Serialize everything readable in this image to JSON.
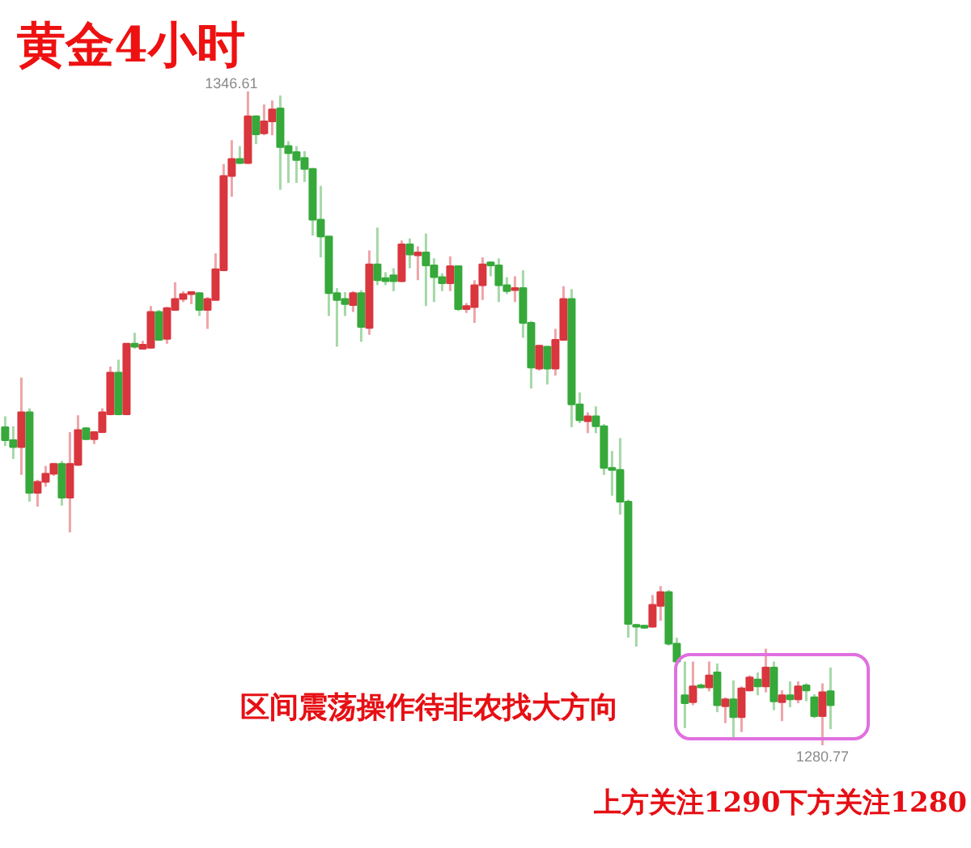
{
  "chart_data": {
    "type": "candlestick",
    "title": "黄金4小时",
    "annotations": [
      "1346.61",
      "区间震荡操作待非农找大方向",
      "1280.77",
      "上方关注1290下方关注1280"
    ],
    "categories": [
      null,
      null,
      null,
      null,
      null,
      null,
      null,
      null,
      null,
      null,
      null,
      null,
      null,
      null,
      null,
      null,
      null,
      null,
      null,
      null,
      null,
      null,
      null,
      null,
      null,
      null,
      null,
      null,
      null,
      null,
      null,
      null,
      null,
      null,
      null,
      null,
      null,
      null,
      null,
      null,
      null,
      null,
      null,
      null,
      null,
      null,
      null,
      null,
      null,
      null,
      null,
      null,
      null,
      null,
      null,
      null,
      null,
      null,
      null,
      null,
      null,
      null,
      null,
      null,
      null,
      null,
      null,
      null,
      null,
      null,
      null,
      null,
      null,
      null,
      null,
      null,
      null,
      null,
      null,
      null,
      null,
      null,
      null,
      null,
      null,
      null,
      null,
      null,
      null,
      null,
      null,
      null,
      null,
      null,
      null,
      null,
      null,
      null,
      null,
      null,
      null,
      null,
      null
    ],
    "ohlc": [
      [
        1312.8,
        1313.9,
        1310.9,
        1311.5
      ],
      [
        1311.5,
        1312.9,
        1309.6,
        1310.8
      ],
      [
        1310.8,
        1317.8,
        1308.0,
        1314.3
      ],
      [
        1314.3,
        1314.7,
        1305.3,
        1306.2
      ],
      [
        1306.2,
        1307.5,
        1304.8,
        1307.3
      ],
      [
        1307.3,
        1308.9,
        1306.8,
        1308.1
      ],
      [
        1308.1,
        1309.1,
        1307.9,
        1309.1
      ],
      [
        1309.1,
        1309.4,
        1304.9,
        1305.7
      ],
      [
        1305.7,
        1312.3,
        1302.2,
        1309.1
      ],
      [
        1309.0,
        1314.0,
        1308.9,
        1312.5
      ],
      [
        1312.7,
        1312.8,
        1311.5,
        1311.6
      ],
      [
        1311.6,
        1312.4,
        1311.1,
        1312.3
      ],
      [
        1312.3,
        1314.7,
        1312.2,
        1314.3
      ],
      [
        1314.1,
        1318.9,
        1314.0,
        1318.3
      ],
      [
        1318.3,
        1319.6,
        1314.0,
        1314.1
      ],
      [
        1314.1,
        1321.2,
        1314.0,
        1321.2
      ],
      [
        1321.2,
        1322.3,
        1320.7,
        1320.9
      ],
      [
        1320.7,
        1321.5,
        1320.6,
        1321.1
      ],
      [
        1320.8,
        1325.0,
        1320.7,
        1324.4
      ],
      [
        1324.4,
        1324.6,
        1321.5,
        1321.6
      ],
      [
        1321.7,
        1324.9,
        1321.2,
        1324.8
      ],
      [
        1324.6,
        1327.4,
        1324.5,
        1325.7
      ],
      [
        1325.7,
        1326.5,
        1325.4,
        1326.2
      ],
      [
        1326.2,
        1326.5,
        1325.2,
        1326.4
      ],
      [
        1326.3,
        1326.4,
        1324.0,
        1324.6
      ],
      [
        1324.6,
        1325.9,
        1322.7,
        1325.7
      ],
      [
        1325.6,
        1330.3,
        1325.6,
        1328.7
      ],
      [
        1328.6,
        1339.3,
        1328.5,
        1338.1
      ],
      [
        1338.1,
        1341.7,
        1336.0,
        1339.8
      ],
      [
        1339.8,
        1341.1,
        1339.3,
        1339.4
      ],
      [
        1339.4,
        1346.61,
        1339.3,
        1344.1
      ],
      [
        1344.1,
        1344.2,
        1341.3,
        1342.3
      ],
      [
        1342.4,
        1345.3,
        1342.2,
        1343.6
      ],
      [
        1343.6,
        1345.7,
        1342.2,
        1344.8
      ],
      [
        1344.9,
        1346.2,
        1336.7,
        1341.0
      ],
      [
        1341.1,
        1341.6,
        1337.4,
        1340.4
      ],
      [
        1340.5,
        1341.1,
        1337.4,
        1339.7
      ],
      [
        1339.9,
        1340.6,
        1337.5,
        1338.8
      ],
      [
        1338.8,
        1338.9,
        1332.1,
        1333.7
      ],
      [
        1333.7,
        1337.1,
        1329.9,
        1332.0
      ],
      [
        1332.0,
        1332.0,
        1324.0,
        1326.3
      ],
      [
        1326.3,
        1326.8,
        1320.9,
        1325.6
      ],
      [
        1325.7,
        1326.4,
        1324.0,
        1325.2
      ],
      [
        1325.1,
        1326.5,
        1324.4,
        1326.3
      ],
      [
        1326.3,
        1326.6,
        1321.4,
        1322.9
      ],
      [
        1322.8,
        1330.6,
        1322.1,
        1329.2
      ],
      [
        1329.2,
        1332.9,
        1327.1,
        1327.6
      ],
      [
        1327.8,
        1328.4,
        1327.1,
        1327.5
      ],
      [
        1328.1,
        1328.8,
        1326.5,
        1327.5
      ],
      [
        1327.5,
        1331.6,
        1327.4,
        1331.2
      ],
      [
        1331.2,
        1331.8,
        1328.8,
        1330.2
      ],
      [
        1330.1,
        1331.0,
        1327.6,
        1330.4
      ],
      [
        1330.4,
        1332.3,
        1325.0,
        1329.1
      ],
      [
        1329.1,
        1329.8,
        1325.4,
        1327.9
      ],
      [
        1327.9,
        1328.3,
        1326.5,
        1327.3
      ],
      [
        1327.3,
        1330.0,
        1326.5,
        1329.0
      ],
      [
        1329.0,
        1329.1,
        1324.5,
        1324.7
      ],
      [
        1324.7,
        1325.3,
        1324.3,
        1325.0
      ],
      [
        1324.9,
        1327.6,
        1323.3,
        1327.1
      ],
      [
        1327.1,
        1329.9,
        1325.6,
        1329.2
      ],
      [
        1329.4,
        1329.5,
        1328.0,
        1329.1
      ],
      [
        1329.1,
        1329.8,
        1325.4,
        1327.1
      ],
      [
        1327.1,
        1327.9,
        1326.2,
        1326.5
      ],
      [
        1326.6,
        1328.0,
        1325.4,
        1326.8
      ],
      [
        1326.8,
        1328.6,
        1321.8,
        1323.3
      ],
      [
        1323.3,
        1323.5,
        1316.7,
        1318.8
      ],
      [
        1318.7,
        1321.1,
        1318.5,
        1321.0
      ],
      [
        1320.9,
        1321.0,
        1317.1,
        1318.7
      ],
      [
        1318.7,
        1322.7,
        1318.0,
        1321.6
      ],
      [
        1321.6,
        1327.0,
        1321.5,
        1325.7
      ],
      [
        1325.7,
        1326.7,
        1312.8,
        1315.1
      ],
      [
        1315.1,
        1316.3,
        1313.2,
        1313.5
      ],
      [
        1313.4,
        1314.3,
        1312.2,
        1313.9
      ],
      [
        1313.9,
        1314.9,
        1312.2,
        1312.9
      ],
      [
        1312.9,
        1313.1,
        1308.0,
        1308.7
      ],
      [
        1308.7,
        1310.4,
        1305.9,
        1308.5
      ],
      [
        1308.5,
        1311.7,
        1304.0,
        1305.3
      ],
      [
        1305.3,
        1305.5,
        1291.6,
        1293.0
      ],
      [
        1292.9,
        1293.0,
        1290.7,
        1292.7
      ],
      [
        1292.8,
        1292.9,
        1292.5,
        1292.6
      ],
      [
        1292.7,
        1295.9,
        1292.6,
        1294.9
      ],
      [
        1294.8,
        1296.8,
        1293.3,
        1296.2
      ],
      [
        1296.2,
        1296.4,
        1290.8,
        1291.0
      ],
      [
        1291.0,
        1291.6,
        1289.0,
        1289.2
      ],
      [
        1285.8,
        1289.2,
        1282.5,
        1285.0
      ],
      [
        1285.1,
        1289.2,
        1284.8,
        1286.7
      ],
      [
        1286.8,
        1287.0,
        1286.5,
        1286.6
      ],
      [
        1286.6,
        1289.2,
        1286.2,
        1287.8
      ],
      [
        1288.1,
        1289.0,
        1284.1,
        1284.8
      ],
      [
        1284.7,
        1285.6,
        1283.0,
        1285.4
      ],
      [
        1285.4,
        1287.3,
        1281.3,
        1283.6
      ],
      [
        1283.6,
        1286.7,
        1282.1,
        1286.5
      ],
      [
        1286.3,
        1287.8,
        1286.2,
        1287.6
      ],
      [
        1287.4,
        1288.1,
        1285.8,
        1286.7
      ],
      [
        1286.7,
        1290.5,
        1286.1,
        1288.6
      ],
      [
        1288.6,
        1289.2,
        1284.3,
        1285.2
      ],
      [
        1285.1,
        1286.3,
        1283.2,
        1285.8
      ],
      [
        1285.8,
        1287.2,
        1284.6,
        1285.4
      ],
      [
        1285.4,
        1287.2,
        1285.0,
        1286.7
      ],
      [
        1286.8,
        1287.0,
        1285.2,
        1286.3
      ],
      [
        1285.6,
        1285.9,
        1283.5,
        1283.7
      ],
      [
        1283.7,
        1287.0,
        1280.77,
        1286.1
      ],
      [
        1286.2,
        1288.6,
        1282.4,
        1284.8
      ]
    ],
    "colors": [
      "#36a93a",
      "#36a93a",
      "#d9363e",
      "#36a93a",
      "#d9363e",
      "#d9363e",
      "#d9363e",
      "#36a93a",
      "#d9363e",
      "#d9363e",
      "#36a93a",
      "#d9363e",
      "#d9363e",
      "#d9363e",
      "#36a93a",
      "#d9363e",
      "#36a93a",
      "#d9363e",
      "#d9363e",
      "#36a93a",
      "#d9363e",
      "#d9363e",
      "#d9363e",
      "#d9363e",
      "#36a93a",
      "#d9363e",
      "#d9363e",
      "#d9363e",
      "#d9363e",
      "#36a93a",
      "#d9363e",
      "#36a93a",
      "#d9363e",
      "#d9363e",
      "#36a93a",
      "#36a93a",
      "#36a93a",
      "#36a93a",
      "#36a93a",
      "#36a93a",
      "#36a93a",
      "#36a93a",
      "#36a93a",
      "#d9363e",
      "#36a93a",
      "#d9363e",
      "#36a93a",
      "#36a93a",
      "#36a93a",
      "#d9363e",
      "#36a93a",
      "#d9363e",
      "#36a93a",
      "#36a93a",
      "#36a93a",
      "#d9363e",
      "#36a93a",
      "#d9363e",
      "#d9363e",
      "#d9363e",
      "#36a93a",
      "#36a93a",
      "#36a93a",
      "#d9363e",
      "#36a93a",
      "#36a93a",
      "#d9363e",
      "#36a93a",
      "#d9363e",
      "#d9363e",
      "#36a93a",
      "#36a93a",
      "#d9363e",
      "#36a93a",
      "#36a93a",
      "#36a93a",
      "#36a93a",
      "#36a93a",
      "#36a93a",
      "#36a93a",
      "#d9363e",
      "#d9363e",
      "#36a93a",
      "#36a93a",
      "#36a93a",
      "#d9363e",
      "#36a93a",
      "#d9363e",
      "#36a93a",
      "#d9363e",
      "#36a93a",
      "#d9363e",
      "#d9363e",
      "#36a93a",
      "#d9363e",
      "#36a93a",
      "#d9363e",
      "#36a93a",
      "#d9363e",
      "#36a93a",
      "#36a93a",
      "#d9363e",
      "#36a93a"
    ]
  }
}
